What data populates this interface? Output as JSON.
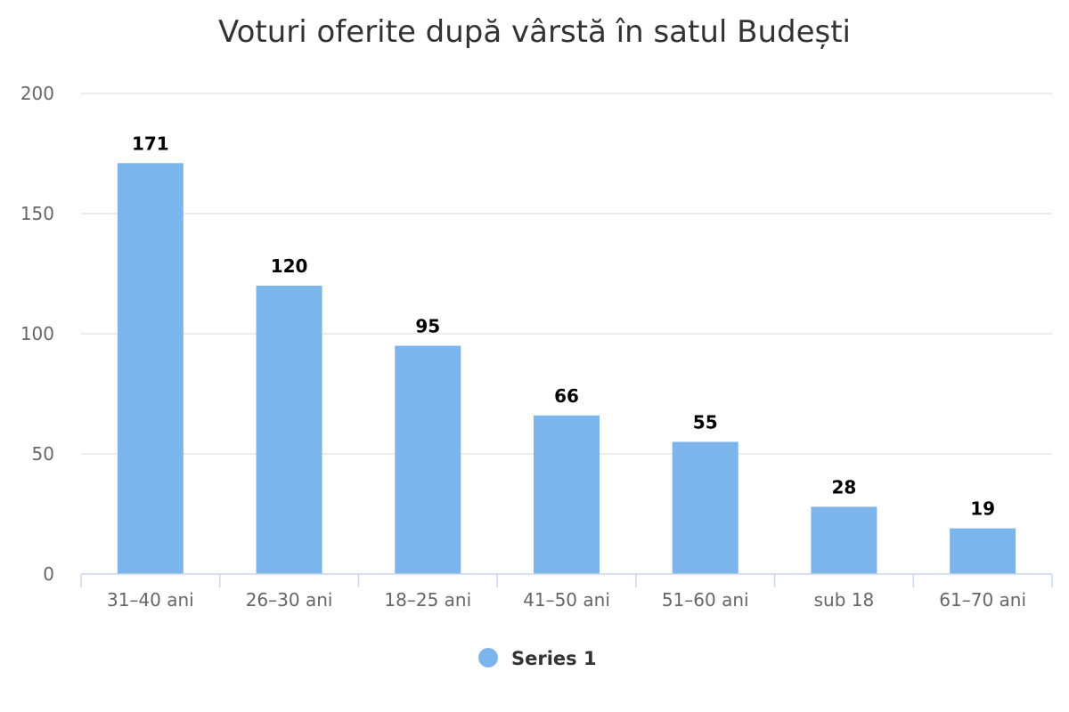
{
  "chart_data": {
    "type": "bar",
    "title": "Voturi oferite după vârstă în satul Budești",
    "categories": [
      "31-40 ani",
      "26-30 ani",
      "18-25 ani",
      "41-50 ani",
      "51-60 ani",
      "sub 18",
      "61-70 ani"
    ],
    "series": [
      {
        "name": "Series 1",
        "values": [
          171,
          120,
          95,
          66,
          55,
          28,
          19
        ],
        "color": "#7cb5ec"
      }
    ],
    "ylim": [
      0,
      200
    ],
    "yticks": [
      0,
      50,
      100,
      150,
      200
    ],
    "grid": true,
    "legend": "bottom-center",
    "data_labels": true
  }
}
